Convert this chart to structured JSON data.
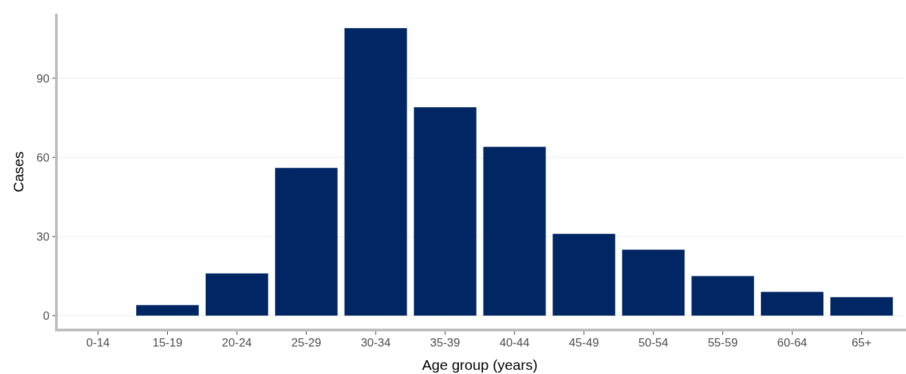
{
  "chart_data": {
    "type": "bar",
    "xlabel": "Age group (years)",
    "ylabel": "Cases",
    "categories": [
      "0-14",
      "15-19",
      "20-24",
      "25-29",
      "30-34",
      "35-39",
      "40-44",
      "45-49",
      "50-54",
      "55-59",
      "60-64",
      "65+"
    ],
    "values": [
      0,
      4,
      16,
      56,
      109,
      79,
      64,
      31,
      25,
      15,
      9,
      7
    ],
    "color": "#002663",
    "ylim": [
      -5.45,
      114.45
    ],
    "yticks": [
      0,
      30,
      60,
      90
    ],
    "grid": "y"
  }
}
